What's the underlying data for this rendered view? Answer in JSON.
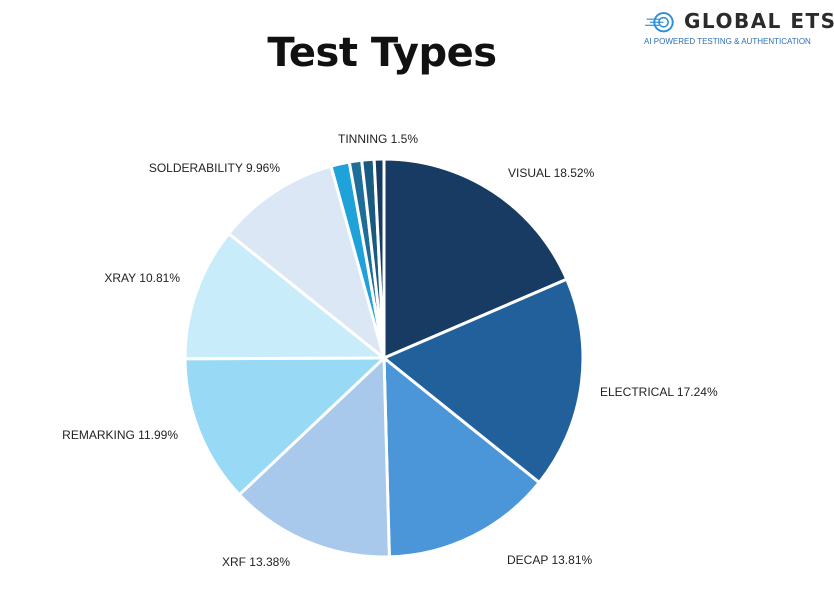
{
  "logo": {
    "name": "GLOBAL ETS",
    "tagline": "AI POWERED TESTING & AUTHENTICATION"
  },
  "chart_data": {
    "type": "pie",
    "title": "Test Types",
    "slices": [
      {
        "label": "VISUAL 18.52%",
        "name": "VISUAL",
        "value": 18.52,
        "color": "#173b63"
      },
      {
        "label": "ELECTRICAL 17.24%",
        "name": "ELECTRICAL",
        "value": 17.24,
        "color": "#22609c"
      },
      {
        "label": "DECAP 13.81%",
        "name": "DECAP",
        "value": 13.81,
        "color": "#4b95d9"
      },
      {
        "label": "XRF 13.38%",
        "name": "XRF",
        "value": 13.38,
        "color": "#a8c9eb"
      },
      {
        "label": "REMARKING 11.99%",
        "name": "REMARKING",
        "value": 11.99,
        "color": "#98d9f6"
      },
      {
        "label": "XRAY 10.81%",
        "name": "XRAY",
        "value": 10.81,
        "color": "#c9ecfb"
      },
      {
        "label": "SOLDERABILITY 9.96%",
        "name": "SOLDERABILITY",
        "value": 9.96,
        "color": "#dce7f6"
      },
      {
        "label": "TINNING 1.5%",
        "name": "TINNING",
        "value": 1.5,
        "color": "#1fa1d9"
      },
      {
        "label": "",
        "value": 1.0,
        "color": "#1f6e99"
      },
      {
        "label": "",
        "value": 1.0,
        "color": "#185a80"
      },
      {
        "label": "",
        "value": 0.79,
        "color": "#173b63"
      }
    ]
  }
}
